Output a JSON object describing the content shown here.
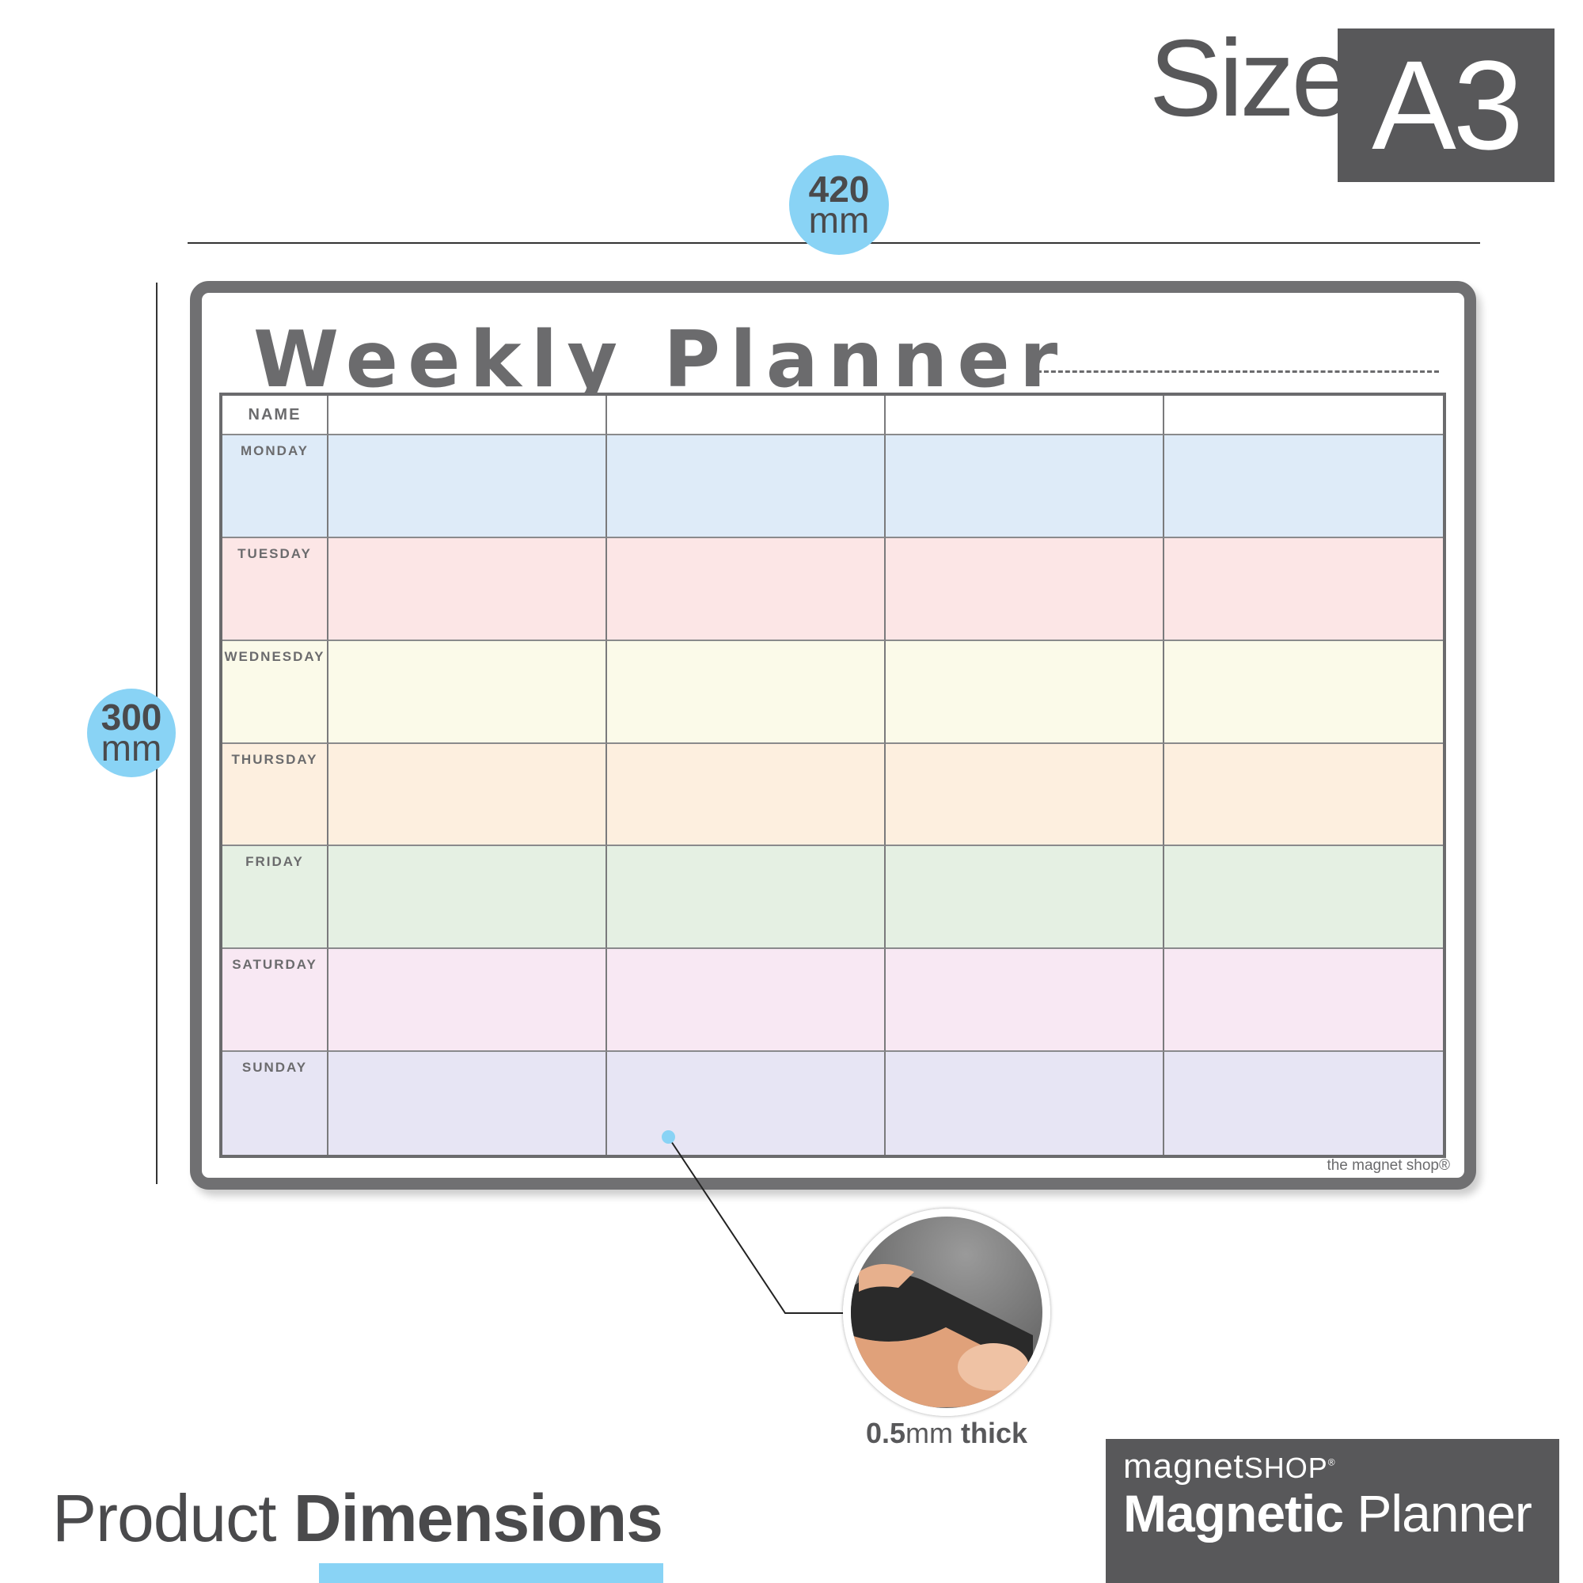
{
  "size": {
    "label": "Size",
    "value": "A3"
  },
  "dimensions": {
    "width": {
      "value": "420",
      "unit": "mm"
    },
    "height": {
      "value": "300",
      "unit": "mm"
    }
  },
  "board": {
    "title": "Weekly Planner",
    "name_label": "NAME",
    "days": [
      "MONDAY",
      "TUESDAY",
      "WEDNESDAY",
      "THURSDAY",
      "FRIDAY",
      "SATURDAY",
      "SUNDAY"
    ],
    "brand": "the magnet shop®"
  },
  "row_colors": [
    "#deebf8",
    "#fce6e6",
    "#fbfae9",
    "#fdefdf",
    "#e5f0e3",
    "#f8e8f3",
    "#e7e5f4"
  ],
  "thickness": {
    "value": "0.5",
    "unit": "mm",
    "word": "thick"
  },
  "footer": {
    "light": "Product",
    "bold": "Dimensions"
  },
  "logo": {
    "brand_light": "magnet",
    "brand_caps": "SHOP",
    "reg": "®",
    "product_bold": "Magnetic",
    "product_light": "Planner"
  },
  "colors": {
    "accent": "#89d3f5",
    "dark": "#58585a",
    "frame": "#707072"
  }
}
